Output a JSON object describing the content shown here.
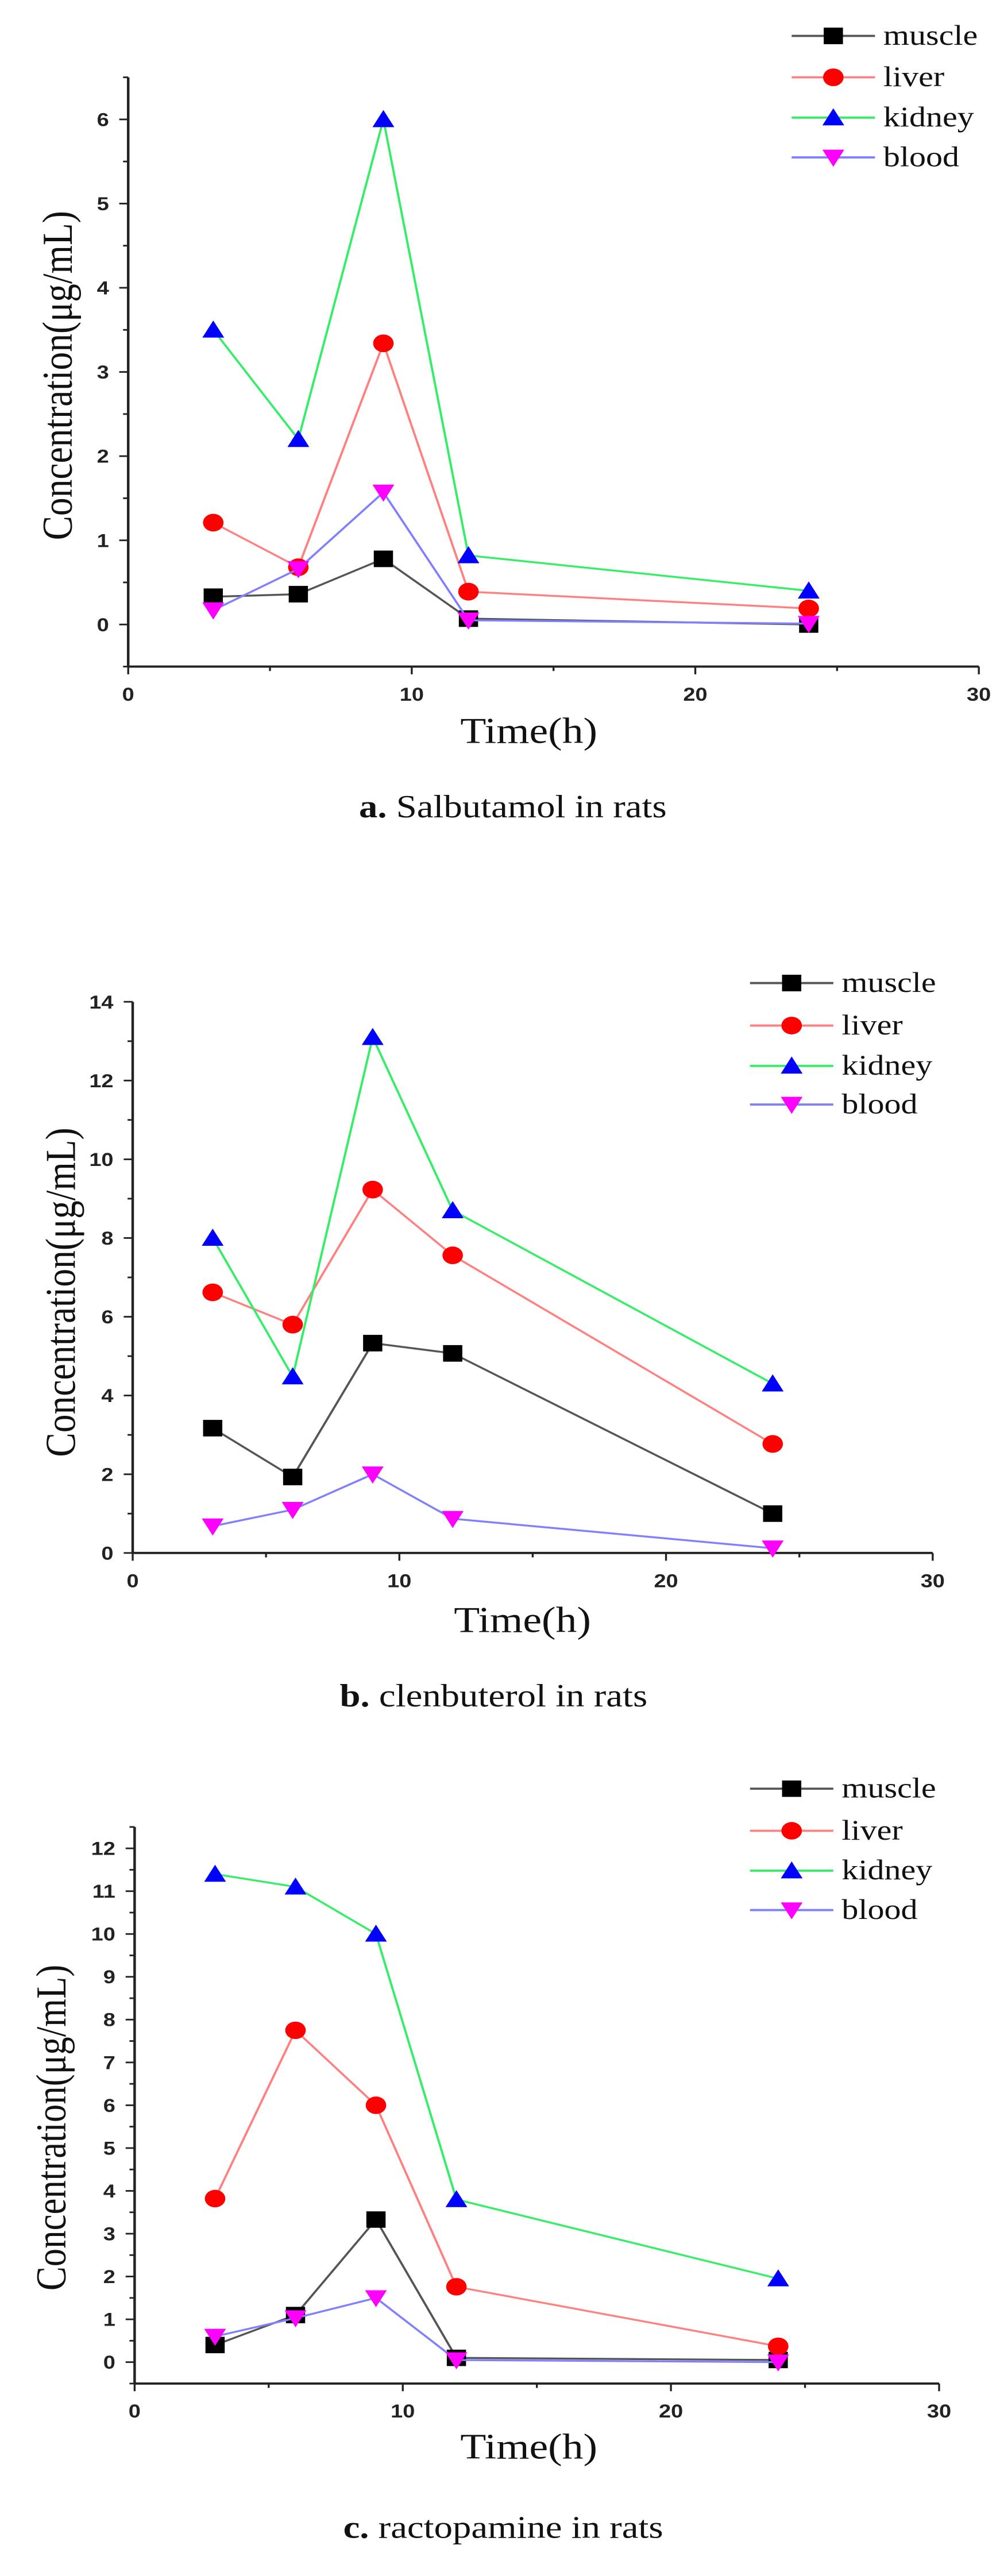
{
  "chart_data": [
    {
      "type": "line",
      "caption_prefix": "a.",
      "title": "Salbutamol in rats",
      "xlabel": "Time(h)",
      "ylabel": "Concentration(μg/mL)",
      "xlim": [
        0,
        30
      ],
      "ylim": [
        -0.5,
        6.5
      ],
      "xticks": [
        0,
        10,
        20,
        30
      ],
      "yticks": [
        0,
        1,
        2,
        3,
        4,
        5,
        6
      ],
      "x": [
        3,
        6,
        9,
        12,
        24
      ],
      "legend_position": "top-right",
      "series": [
        {
          "name": "muscle",
          "values": [
            0.33,
            0.36,
            0.78,
            0.07,
            0.0
          ]
        },
        {
          "name": "liver",
          "values": [
            1.21,
            0.68,
            3.34,
            0.39,
            0.19
          ]
        },
        {
          "name": "kidney",
          "values": [
            3.5,
            2.2,
            6.0,
            0.82,
            0.4
          ]
        },
        {
          "name": "blood",
          "values": [
            0.17,
            0.66,
            1.57,
            0.05,
            0.01
          ]
        }
      ]
    },
    {
      "type": "line",
      "caption_prefix": "b.",
      "title": "clenbuterol in rats",
      "xlabel": "Time(h)",
      "ylabel": "Concentration(μg/mL)",
      "xlim": [
        0,
        30
      ],
      "ylim": [
        0,
        14
      ],
      "xticks": [
        0,
        10,
        20,
        30
      ],
      "yticks": [
        0,
        2,
        4,
        6,
        8,
        10,
        12,
        14
      ],
      "x": [
        3,
        6,
        9,
        12,
        24
      ],
      "legend_position": "top-right",
      "series": [
        {
          "name": "muscle",
          "values": [
            3.17,
            1.93,
            5.33,
            5.07,
            1.0
          ]
        },
        {
          "name": "liver",
          "values": [
            6.62,
            5.8,
            9.23,
            7.56,
            2.77
          ]
        },
        {
          "name": "kidney",
          "values": [
            8.0,
            4.48,
            13.1,
            8.7,
            4.3
          ]
        },
        {
          "name": "blood",
          "values": [
            0.68,
            1.1,
            2.0,
            0.87,
            0.12
          ]
        }
      ]
    },
    {
      "type": "line",
      "caption_prefix": "c.",
      "title": "ractopamine in rats",
      "xlabel": "Time(h)",
      "ylabel": "Concentration(μg/mL)",
      "xlim": [
        0,
        30
      ],
      "ylim": [
        -0.5,
        12.5
      ],
      "xticks": [
        0,
        10,
        20,
        30
      ],
      "yticks": [
        0,
        1,
        2,
        3,
        4,
        5,
        6,
        7,
        8,
        9,
        10,
        11,
        12
      ],
      "x": [
        3,
        6,
        9,
        12,
        24
      ],
      "legend_position": "top-right",
      "series": [
        {
          "name": "muscle",
          "values": [
            0.4,
            1.1,
            3.33,
            0.1,
            0.05
          ]
        },
        {
          "name": "liver",
          "values": [
            3.82,
            7.75,
            6.0,
            1.76,
            0.37
          ]
        },
        {
          "name": "kidney",
          "values": [
            11.4,
            11.1,
            10.0,
            3.8,
            1.95
          ]
        },
        {
          "name": "blood",
          "values": [
            0.6,
            1.03,
            1.5,
            0.05,
            0.0
          ]
        }
      ]
    }
  ],
  "styles": {
    "muscle": {
      "line": "#555555",
      "marker": "#000000",
      "shape": "square"
    },
    "liver": {
      "line": "#ff8080",
      "marker": "#ff0000",
      "shape": "circle"
    },
    "kidney": {
      "line": "#33ee66",
      "marker": "#0000ff",
      "shape": "triangle-up"
    },
    "blood": {
      "line": "#8080ff",
      "marker": "#ff00ff",
      "shape": "triangle-down"
    }
  }
}
